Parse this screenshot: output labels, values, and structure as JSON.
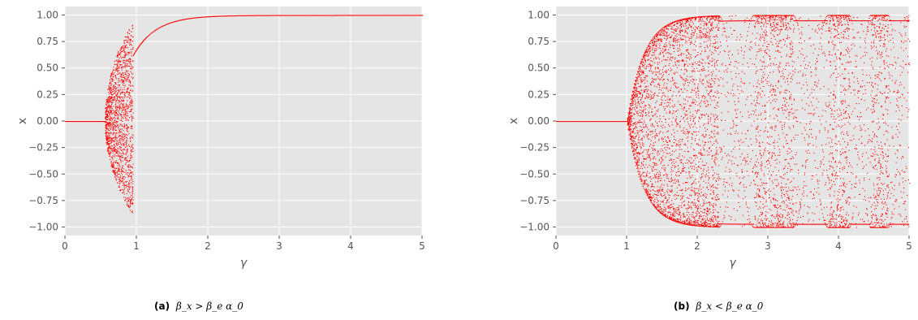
{
  "chart_data": [
    {
      "type": "scatter",
      "xlabel": "γ",
      "ylabel": "x",
      "xlim": [
        0,
        5
      ],
      "ylim": [
        -1.08,
        1.08
      ],
      "xticks": [
        0,
        1,
        2,
        3,
        4,
        5
      ],
      "xtick_labels": [
        "0",
        "1",
        "2",
        "3",
        "4",
        "5"
      ],
      "yticks": [
        -1.0,
        -0.75,
        -0.5,
        -0.25,
        0.0,
        0.25,
        0.5,
        0.75,
        1.0
      ],
      "ytick_labels": [
        "−1.00",
        "−0.75",
        "−0.50",
        "−0.25",
        "0.00",
        "0.25",
        "0.50",
        "0.75",
        "1.00"
      ],
      "grid": true,
      "point_color": "#ff0000",
      "background_color": "#e5e5e5",
      "features": {
        "fixed_point_zero_until": 0.55,
        "chaotic_band": [
          0.55,
          0.95
        ],
        "band_upper_max": 0.96,
        "band_lower_min": -0.9,
        "upper_branch_start": [
          0.95,
          0.62
        ],
        "upper_branch_approaches": 1.0
      },
      "caption_label": "(a)",
      "caption_text": "β_x > β_e α_0"
    },
    {
      "type": "scatter",
      "xlabel": "γ",
      "ylabel": "x",
      "xlim": [
        0,
        5
      ],
      "ylim": [
        -1.08,
        1.08
      ],
      "xticks": [
        0,
        1,
        2,
        3,
        4,
        5
      ],
      "xtick_labels": [
        "0",
        "1",
        "2",
        "3",
        "4",
        "5"
      ],
      "yticks": [
        -1.0,
        -0.75,
        -0.5,
        -0.25,
        0.0,
        0.25,
        0.5,
        0.75,
        1.0
      ],
      "ytick_labels": [
        "−1.00",
        "−0.75",
        "−0.50",
        "−0.25",
        "0.00",
        "0.25",
        "0.50",
        "0.75",
        "1.00"
      ],
      "grid": true,
      "point_color": "#ff0000",
      "background_color": "#e5e5e5",
      "features": {
        "fixed_point_zero_until": 1.0,
        "chaotic_envelope": [
          1.0,
          5.0
        ],
        "periodic_windows": [
          [
            2.3,
            2.8
          ],
          [
            3.35,
            3.85
          ],
          [
            4.15,
            4.45
          ],
          [
            4.7,
            5.0
          ]
        ]
      },
      "caption_label": "(b)",
      "caption_text": "β_x < β_e α_0"
    }
  ]
}
